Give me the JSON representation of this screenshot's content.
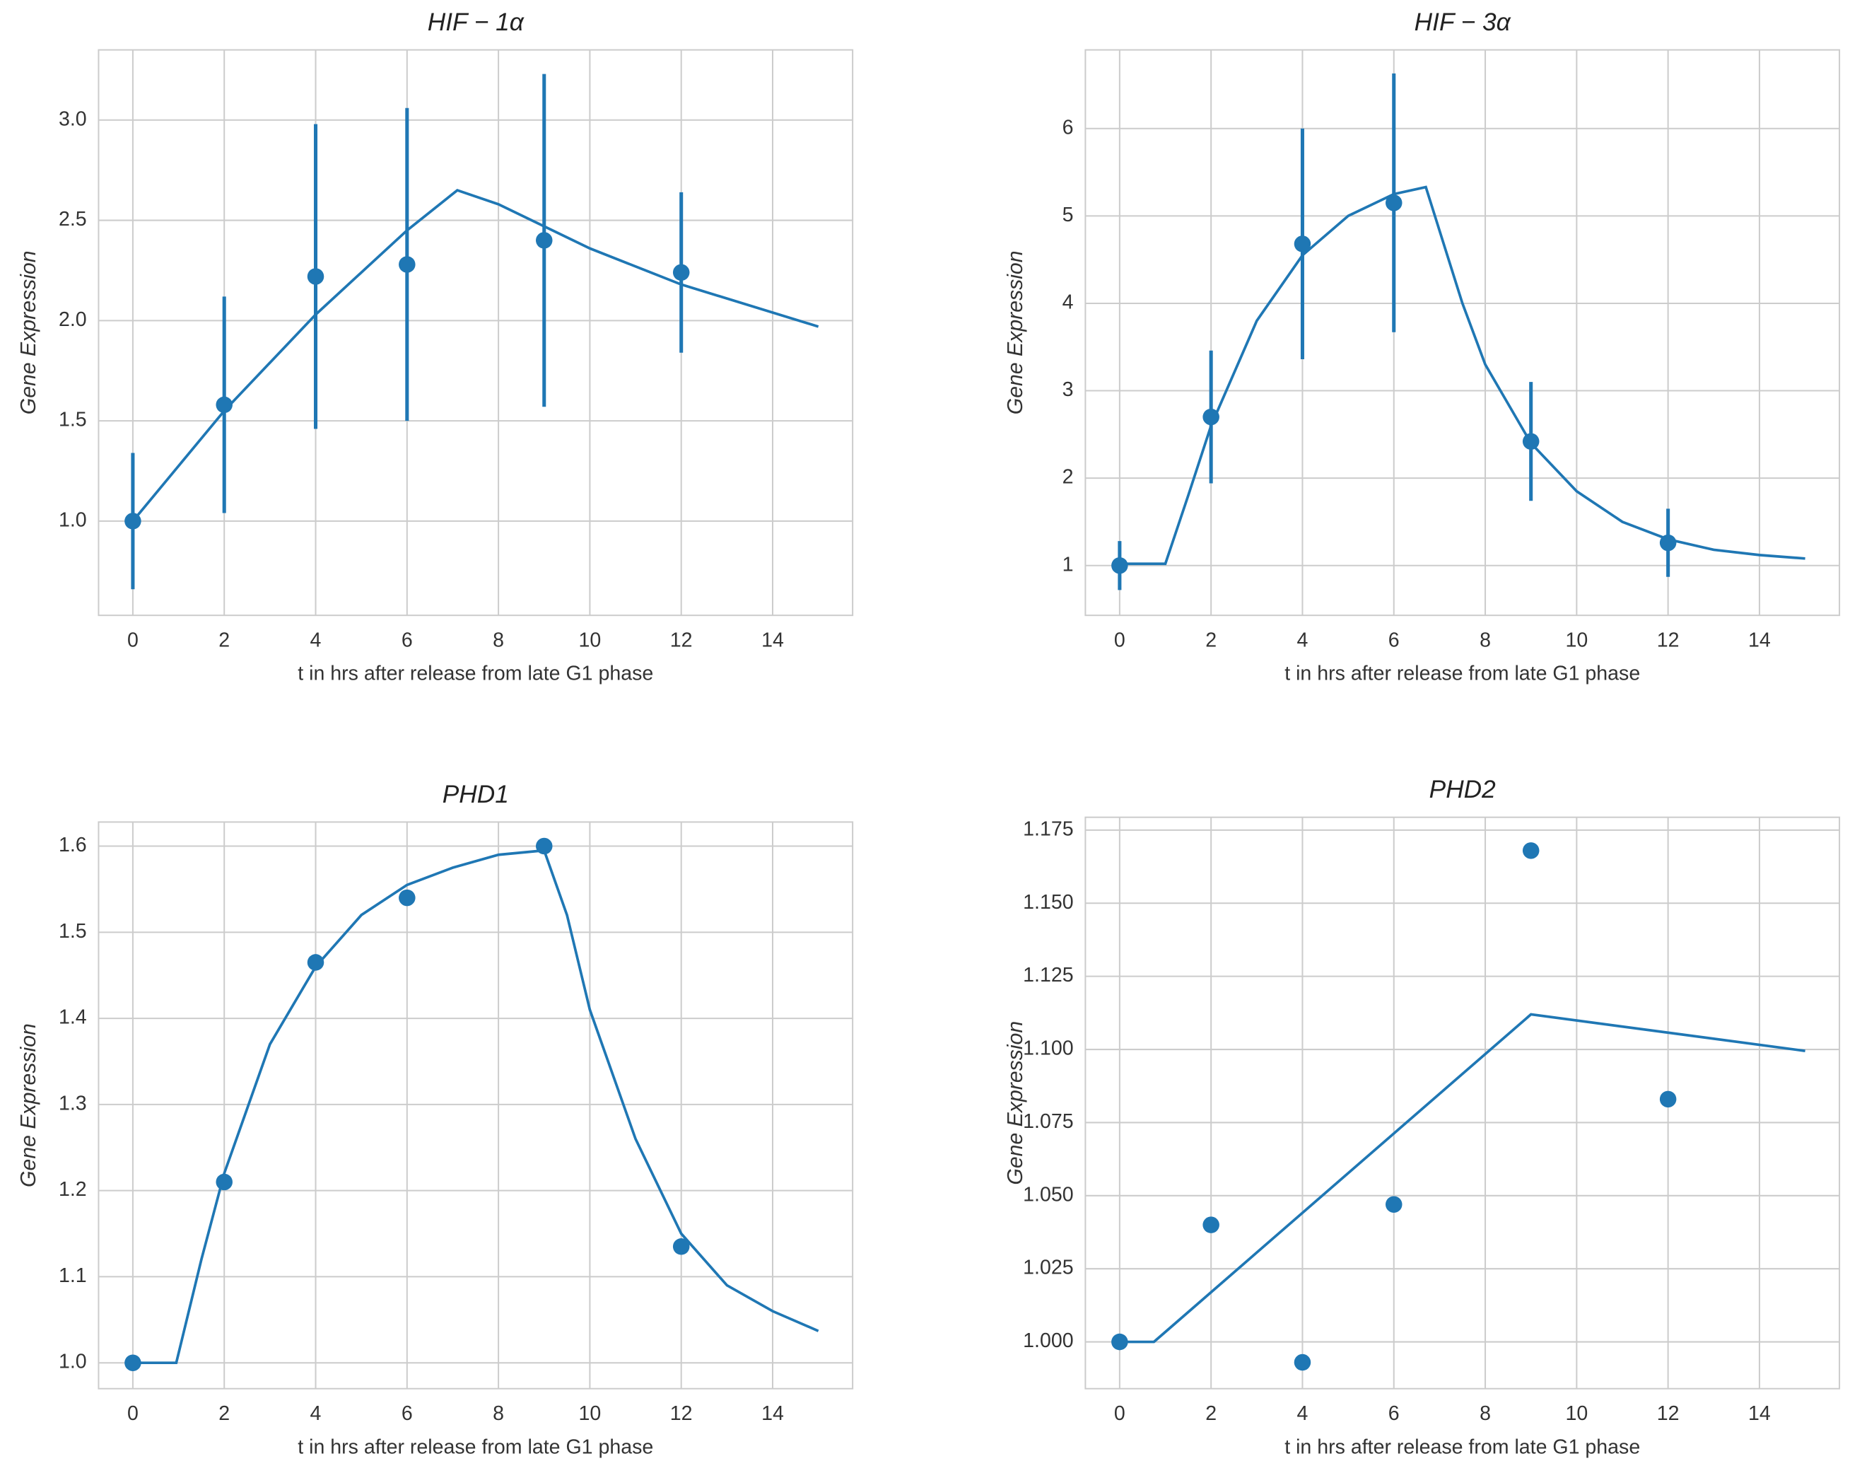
{
  "chart_data": [
    {
      "type": "scatter",
      "title": "HIF − 1α",
      "xlabel": "t in hrs after release from late G1 phase",
      "ylabel": "Gene Expression",
      "color": "#1f77b4",
      "grid": true,
      "x": [
        0,
        2,
        4,
        6,
        9,
        12
      ],
      "values": [
        1.0,
        1.58,
        2.22,
        2.28,
        2.4,
        2.24
      ],
      "errors": [
        0.34,
        0.54,
        0.76,
        0.78,
        0.83,
        0.4
      ],
      "fit_x": [
        0,
        2,
        4,
        6,
        7.1,
        8,
        10,
        12,
        15
      ],
      "fit_y": [
        1.0,
        1.55,
        2.03,
        2.45,
        2.65,
        2.58,
        2.36,
        2.18,
        1.97
      ],
      "xlim": [
        -0.75,
        15.75
      ],
      "ylim": [
        0.53,
        3.35
      ],
      "xticks": [
        0,
        2,
        4,
        6,
        8,
        10,
        12,
        14
      ],
      "yticks": [
        {
          "value": 1.0,
          "label": "1.0"
        },
        {
          "value": 1.5,
          "label": "1.5"
        },
        {
          "value": 2.0,
          "label": "2.0"
        },
        {
          "value": 2.5,
          "label": "2.5"
        },
        {
          "value": 3.0,
          "label": "3.0"
        }
      ]
    },
    {
      "type": "scatter",
      "title": "HIF − 3α",
      "xlabel": "t in hrs after release from late G1 phase",
      "ylabel": "Gene Expression",
      "color": "#1f77b4",
      "grid": true,
      "x": [
        0,
        2,
        4,
        6,
        9,
        12
      ],
      "values": [
        1.0,
        2.7,
        4.68,
        5.15,
        2.42,
        1.26
      ],
      "errors": [
        0.28,
        0.76,
        1.32,
        1.48,
        0.68,
        0.39
      ],
      "fit_x": [
        0,
        1,
        1.5,
        2,
        3,
        4,
        5,
        6,
        6.7,
        7.5,
        8,
        9,
        10,
        11,
        12,
        13,
        14,
        15
      ],
      "fit_y": [
        1.02,
        1.02,
        1.8,
        2.6,
        3.8,
        4.55,
        5.0,
        5.25,
        5.33,
        4.0,
        3.3,
        2.4,
        1.85,
        1.5,
        1.3,
        1.18,
        1.12,
        1.08
      ],
      "xlim": [
        -0.75,
        15.75
      ],
      "ylim": [
        0.43,
        6.9
      ],
      "xticks": [
        0,
        2,
        4,
        6,
        8,
        10,
        12,
        14
      ],
      "yticks": [
        1,
        2,
        3,
        4,
        5,
        6
      ]
    },
    {
      "type": "scatter",
      "title": "PHD1",
      "xlabel": "t in hrs after release from late G1 phase",
      "ylabel": "Gene Expression",
      "color": "#1f77b4",
      "grid": true,
      "x": [
        0,
        2,
        4,
        6,
        9,
        12
      ],
      "values": [
        1.0,
        1.21,
        1.465,
        1.54,
        1.6,
        1.135
      ],
      "fit_x": [
        0,
        0.95,
        1.5,
        2,
        3,
        4,
        5,
        6,
        7,
        8,
        9,
        9.5,
        10,
        11,
        12,
        13,
        14,
        15
      ],
      "fit_y": [
        1.0,
        1.0,
        1.12,
        1.22,
        1.37,
        1.46,
        1.52,
        1.555,
        1.575,
        1.59,
        1.595,
        1.52,
        1.41,
        1.26,
        1.15,
        1.09,
        1.06,
        1.037
      ],
      "xlim": [
        -0.75,
        15.75
      ],
      "ylim": [
        0.97,
        1.628
      ],
      "xticks": [
        0,
        2,
        4,
        6,
        8,
        10,
        12,
        14
      ],
      "yticks": [
        {
          "value": 1.0,
          "label": "1.0"
        },
        {
          "value": 1.1,
          "label": "1.1"
        },
        {
          "value": 1.2,
          "label": "1.2"
        },
        {
          "value": 1.3,
          "label": "1.3"
        },
        {
          "value": 1.4,
          "label": "1.4"
        },
        {
          "value": 1.5,
          "label": "1.5"
        },
        {
          "value": 1.6,
          "label": "1.6"
        }
      ]
    },
    {
      "type": "scatter",
      "title": "PHD2",
      "xlabel": "t in hrs after release from late G1 phase",
      "ylabel": "Gene Expression",
      "color": "#1f77b4",
      "grid": true,
      "x": [
        0,
        2,
        4,
        6,
        9,
        12
      ],
      "values": [
        1.0,
        1.04,
        0.993,
        1.047,
        1.168,
        1.083
      ],
      "fit_x": [
        0,
        0.75,
        9,
        15
      ],
      "fit_y": [
        1.0,
        1.0,
        1.112,
        1.0995
      ],
      "xlim": [
        -0.75,
        15.75
      ],
      "ylim": [
        0.984,
        1.1794
      ],
      "xticks": [
        0,
        2,
        4,
        6,
        8,
        10,
        12,
        14
      ],
      "yticks": [
        {
          "value": 1.0,
          "label": "1.000"
        },
        {
          "value": 1.025,
          "label": "1.025"
        },
        {
          "value": 1.05,
          "label": "1.050"
        },
        {
          "value": 1.075,
          "label": "1.075"
        },
        {
          "value": 1.1,
          "label": "1.100"
        },
        {
          "value": 1.125,
          "label": "1.125"
        },
        {
          "value": 1.15,
          "label": "1.150"
        },
        {
          "value": 1.175,
          "label": "1.175"
        }
      ]
    }
  ]
}
